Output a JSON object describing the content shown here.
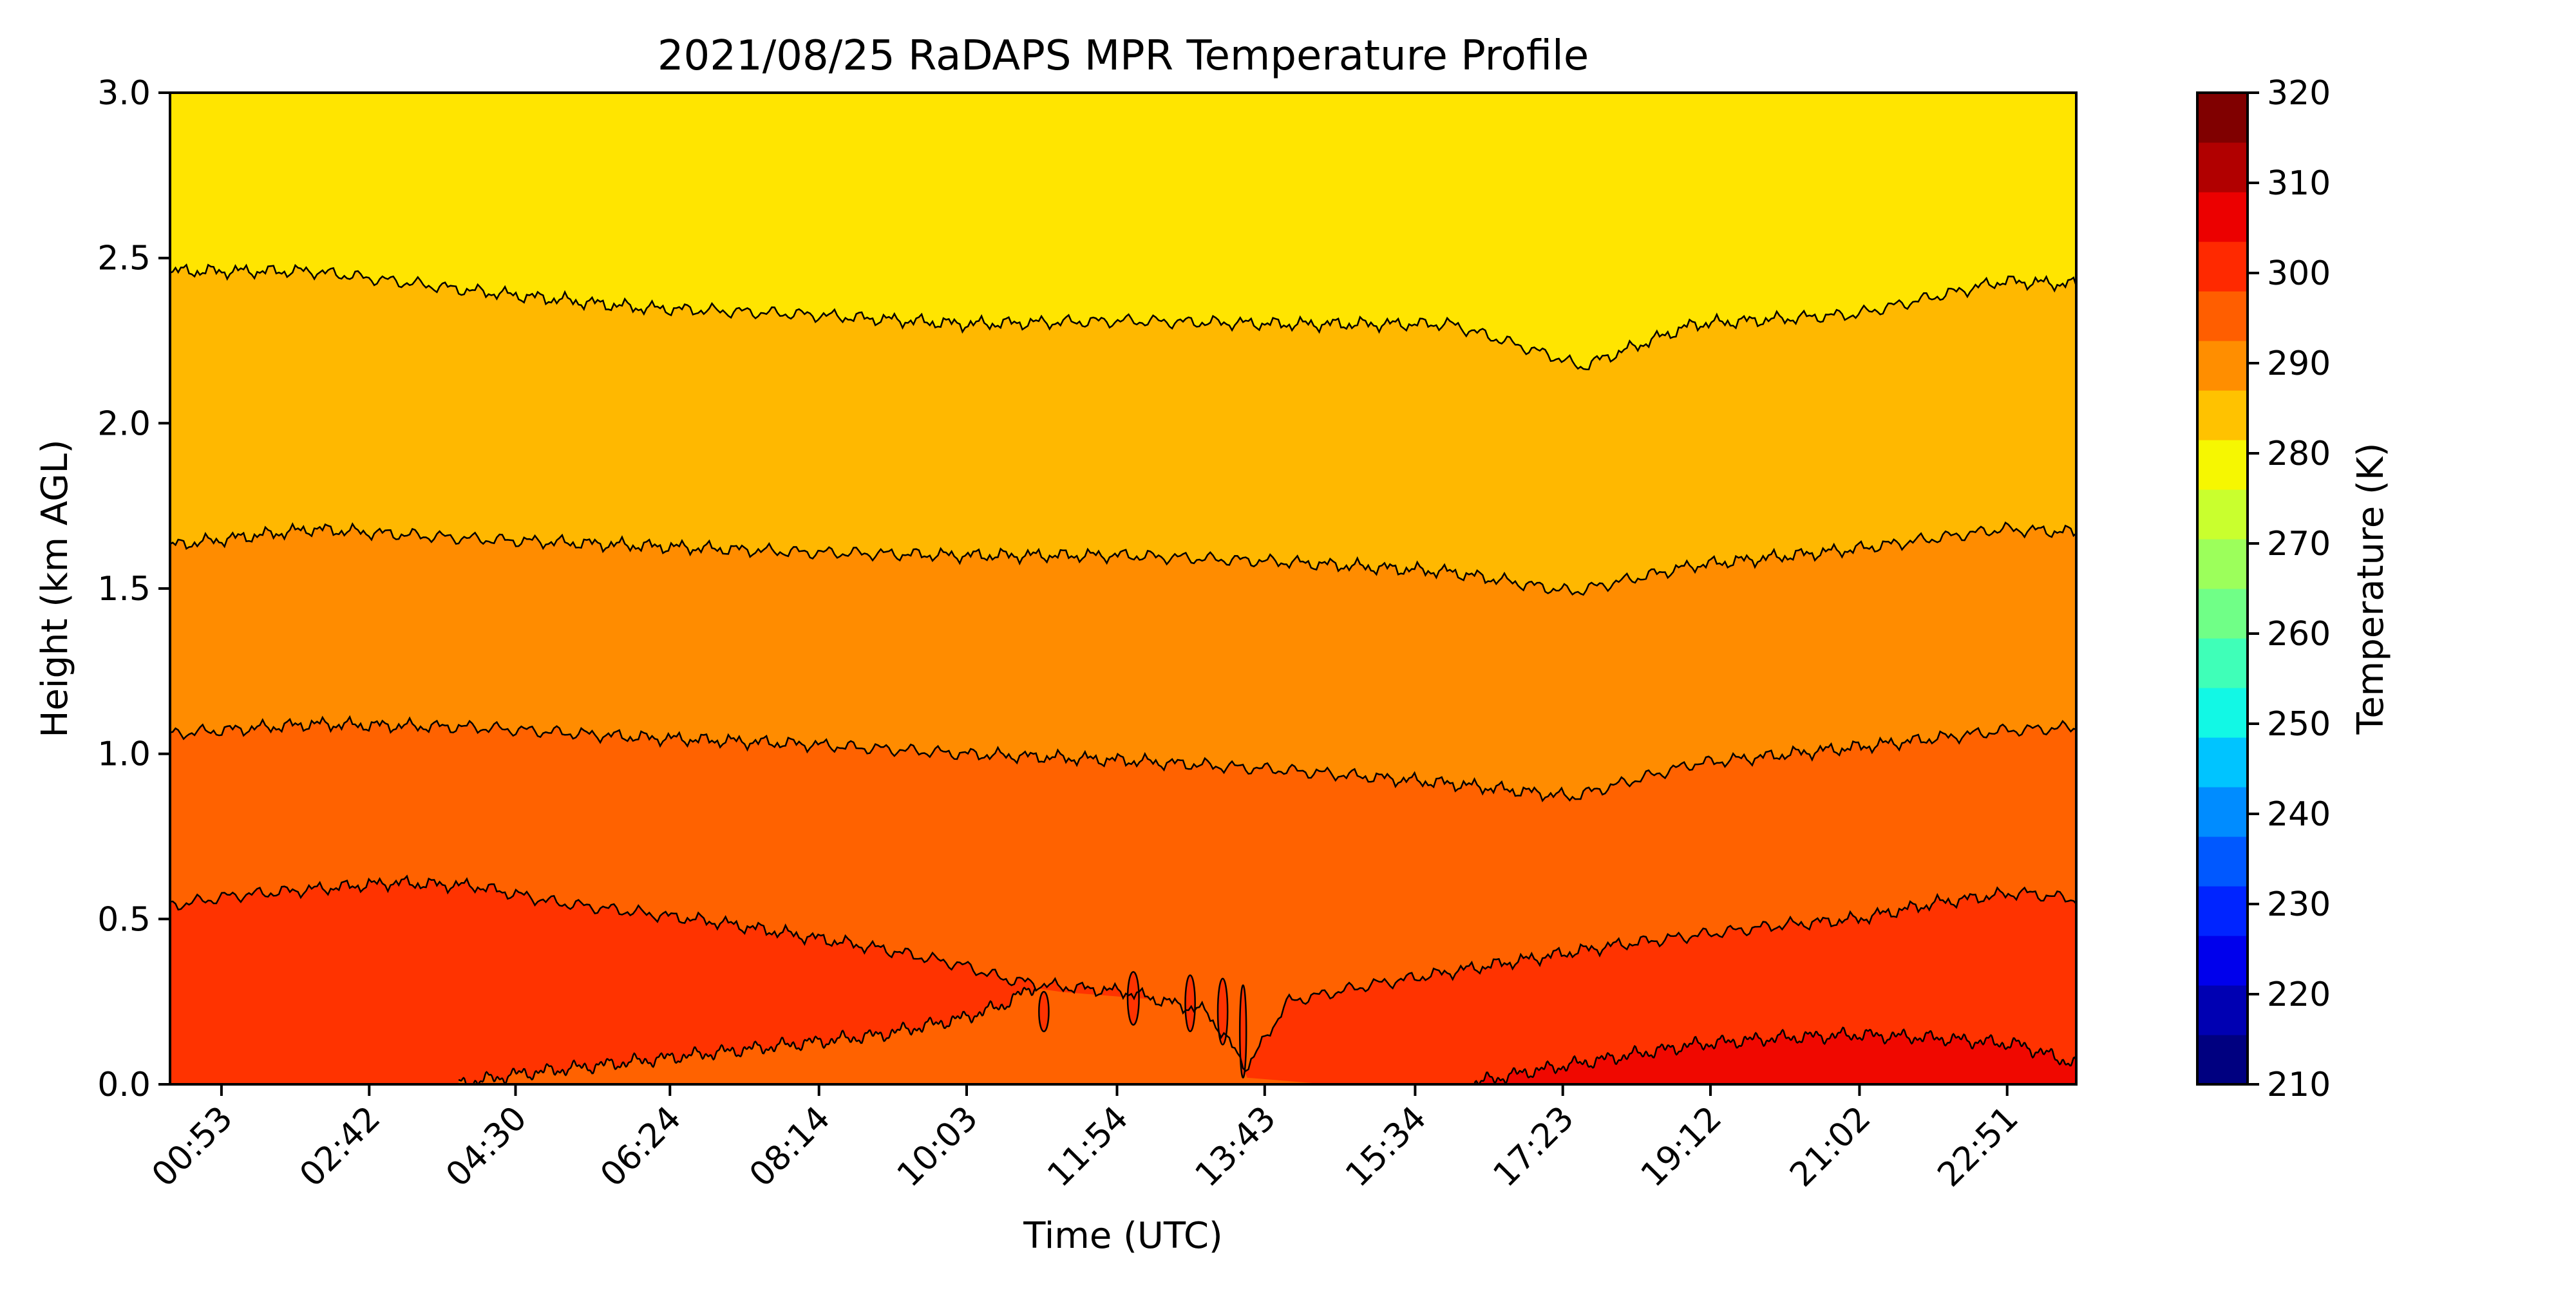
{
  "chart_data": {
    "type": "heatmap",
    "title": "2021/08/25 RaDAPS MPR Temperature Profile",
    "xlabel": "Time (UTC)",
    "ylabel": "Height (km AGL)",
    "x_tick_labels": [
      "00:53",
      "02:42",
      "04:30",
      "06:24",
      "08:14",
      "10:03",
      "11:54",
      "13:43",
      "15:34",
      "17:23",
      "19:12",
      "21:02",
      "22:51"
    ],
    "y_ticks": [
      0.0,
      0.5,
      1.0,
      1.5,
      2.0,
      2.5,
      3.0
    ],
    "y_tick_labels": [
      "0.0",
      "0.5",
      "1.0",
      "1.5",
      "2.0",
      "2.5",
      "3.0"
    ],
    "ylim": [
      0,
      3.0
    ],
    "x_range_hours": [
      0.25,
      23.7
    ],
    "colorbar": {
      "label": "Temperature (K)",
      "range": [
        210,
        320
      ],
      "ticks": [
        210,
        220,
        230,
        240,
        250,
        260,
        270,
        280,
        290,
        300,
        310,
        320
      ],
      "tick_labels": [
        "210",
        "220",
        "230",
        "240",
        "250",
        "260",
        "270",
        "280",
        "290",
        "300",
        "310",
        "320"
      ],
      "level_colors": [
        "#000080",
        "#0000b2",
        "#0000ec",
        "#0024ff",
        "#0058ff",
        "#008cff",
        "#00c4ff",
        "#12f8e5",
        "#3fffb8",
        "#70ff87",
        "#9cff5b",
        "#c9ff2e",
        "#f6f701",
        "#ffc200",
        "#ff8e00",
        "#ff5e00",
        "#ff2900",
        "#ec0000",
        "#b10000",
        "#800000"
      ]
    },
    "contour_levels_K": [
      285,
      290,
      295,
      300,
      305
    ],
    "temperature_bands": [
      {
        "range_K": [
          280,
          285
        ],
        "color": "#ffe500"
      },
      {
        "range_K": [
          285,
          290
        ],
        "color": "#ffb800"
      },
      {
        "range_K": [
          290,
          295
        ],
        "color": "#ff8c00"
      },
      {
        "range_K": [
          295,
          300
        ],
        "color": "#ff6200"
      },
      {
        "range_K": [
          300,
          305
        ],
        "color": "#ff3300"
      },
      {
        "range_K": [
          305,
          310
        ],
        "color": "#f00800"
      }
    ],
    "contours": [
      {
        "level_K": 285,
        "x_hours": [
          0.25,
          2,
          4,
          6,
          8,
          10,
          12,
          14,
          16,
          17.3,
          17.6,
          19,
          21,
          22.8,
          23.7
        ],
        "height_km": [
          2.46,
          2.46,
          2.4,
          2.35,
          2.33,
          2.3,
          2.31,
          2.3,
          2.3,
          2.2,
          2.17,
          2.3,
          2.33,
          2.43,
          2.42
        ]
      },
      {
        "level_K": 290,
        "x_hours": [
          0.25,
          2,
          4,
          6,
          8,
          10,
          12,
          14,
          16,
          17.5,
          19,
          21,
          22.8,
          23.7
        ],
        "height_km": [
          1.63,
          1.68,
          1.65,
          1.63,
          1.61,
          1.6,
          1.6,
          1.58,
          1.55,
          1.49,
          1.57,
          1.62,
          1.68,
          1.67
        ]
      },
      {
        "level_K": 295,
        "x_hours": [
          0.25,
          2,
          4,
          6,
          8,
          10,
          12,
          14,
          16,
          17.5,
          19,
          21,
          22.8,
          23.7
        ],
        "height_km": [
          1.06,
          1.09,
          1.08,
          1.05,
          1.03,
          1.0,
          0.98,
          0.95,
          0.91,
          0.87,
          0.97,
          1.02,
          1.07,
          1.08
        ]
      },
      {
        "level_K": 300,
        "x_hours": [
          0.25,
          1,
          2,
          3,
          4,
          5,
          6,
          7,
          8,
          9,
          10,
          10.5,
          11,
          12,
          13,
          13.5,
          14,
          15,
          16,
          17,
          18,
          19,
          20,
          21,
          22,
          23,
          23.7
        ],
        "height_km": [
          0.54,
          0.57,
          0.59,
          0.61,
          0.6,
          0.55,
          0.52,
          0.49,
          0.45,
          0.41,
          0.36,
          0.32,
          0.3,
          0.28,
          0.22,
          0.05,
          0.25,
          0.3,
          0.34,
          0.38,
          0.42,
          0.45,
          0.48,
          0.5,
          0.55,
          0.58,
          0.56
        ]
      },
      {
        "level_K": 305,
        "x_hours": [
          3.8,
          4.5,
          6,
          7.5,
          9,
          10,
          10.5,
          10.9
        ],
        "height_km": [
          0.0,
          0.03,
          0.07,
          0.11,
          0.15,
          0.2,
          0.24,
          0.3
        ]
      },
      {
        "level_K": 305,
        "x_hours": [
          16.2,
          17,
          18,
          19,
          20,
          21,
          22,
          23,
          23.7
        ],
        "height_km": [
          0.0,
          0.04,
          0.08,
          0.12,
          0.14,
          0.15,
          0.14,
          0.12,
          0.06
        ]
      }
    ],
    "grid": false,
    "legend": "none"
  }
}
